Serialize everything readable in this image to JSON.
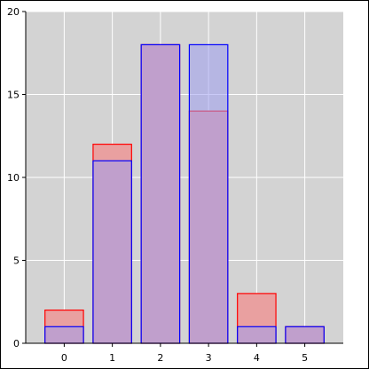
{
  "chart_data": {
    "type": "bar",
    "categories": [
      "0",
      "1",
      "2",
      "3",
      "4",
      "5"
    ],
    "series": [
      {
        "values": [
          2,
          12,
          18,
          14,
          3,
          1
        ],
        "color": "#ff0000",
        "fill": "#e9a0a0"
      },
      {
        "values": [
          1,
          11,
          18,
          18,
          1,
          1
        ],
        "color": "#0000ff",
        "fill": "#9f9ff0"
      }
    ],
    "overlay": true,
    "title": "",
    "xlabel": "",
    "ylabel": "",
    "ylim": [
      0,
      20
    ],
    "yticks": [
      0,
      5,
      10,
      15,
      20
    ],
    "grid": true,
    "plot_background": "#d3d3d3",
    "grid_color": "#ffffff"
  }
}
